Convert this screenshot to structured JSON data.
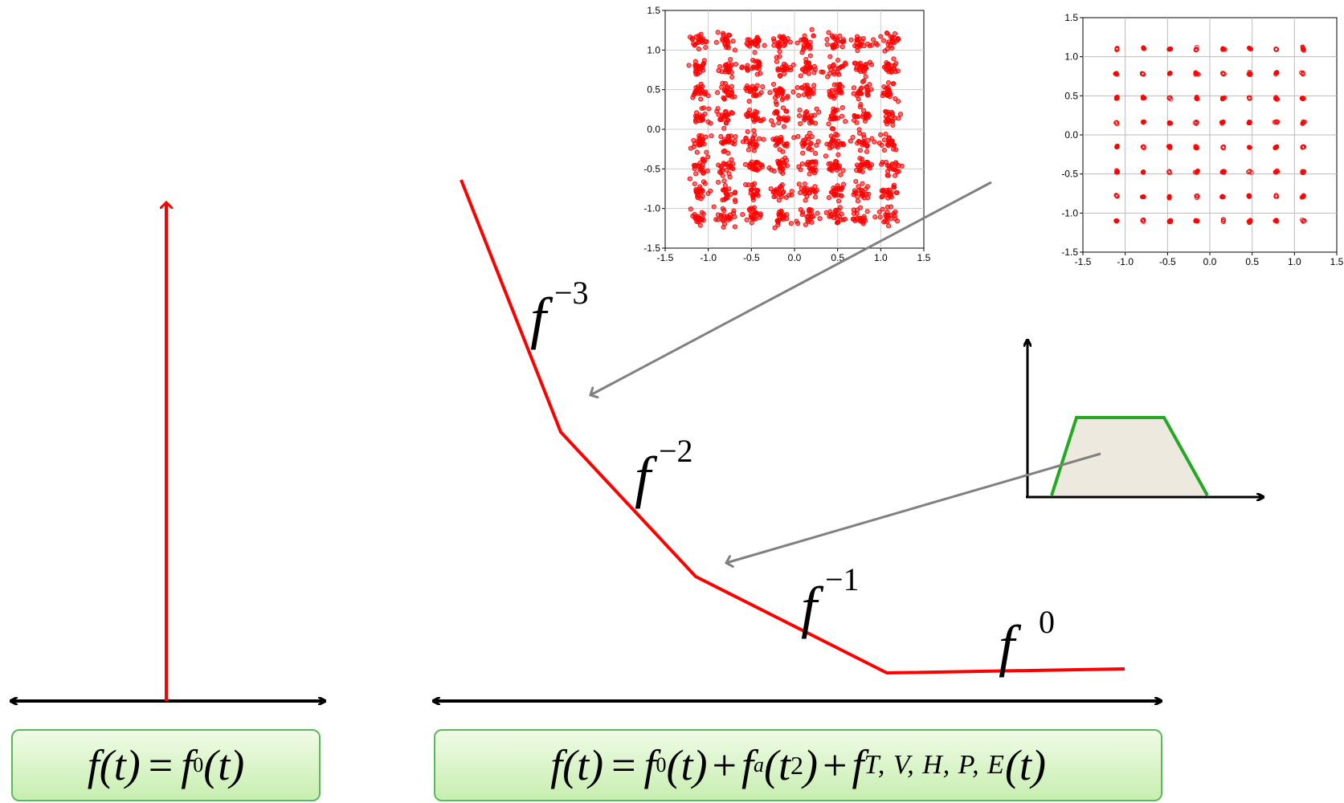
{
  "left_formula": {
    "lhs": "f",
    "lhs_arg": "(t)",
    "equals": "=",
    "f0": "f",
    "f0_sub": "0",
    "f0_arg": "(t)"
  },
  "right_formula": {
    "lhs": "f",
    "lhs_arg": "(t)",
    "equals": "=",
    "term1": "f",
    "term1_sub": "0",
    "term1_arg": "(t)",
    "plus1": "+",
    "term2": "f",
    "term2_sub": "a",
    "term2_arg_open": "(t",
    "term2_sup": "2",
    "term2_arg_close": ")",
    "plus2": "+",
    "term3": "f",
    "term3_sub": "T, V, H, P, E",
    "term3_arg": "(t)"
  },
  "slope_labels": [
    {
      "base": "f",
      "exp": "−3"
    },
    {
      "base": "f",
      "exp": "−2"
    },
    {
      "base": "f",
      "exp": "−1"
    },
    {
      "base": "f",
      "exp": "0"
    }
  ],
  "constellation_ticks": [
    "-1.5",
    "-1.0",
    "-0.5",
    "0.0",
    "0.5",
    "1.0",
    "1.5"
  ],
  "constellation_ticks_right_x": [
    "-1.5",
    "-1.0",
    "-0.5",
    "0.0",
    "0.5",
    "1.0",
    "1.5"
  ],
  "constellation_ticks_right_y": [
    "-1.5",
    "-1.0",
    "-0.5",
    "0.0",
    "0.5",
    "1.0",
    "1.5"
  ],
  "colors": {
    "spectrum": "#ff0000",
    "axis": "#000000",
    "pointer_arrow": "#808080",
    "filter_outline": "#22aa22",
    "filter_fill": "#ede9df",
    "formula_border": "#5cb85c"
  }
}
